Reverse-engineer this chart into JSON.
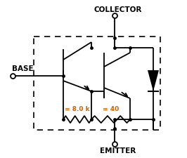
{
  "background": "#ffffff",
  "line_color": "#000000",
  "label_color": "#cc6600",
  "collector_label": "COLLECTOR",
  "base_label": "BASE",
  "emitter_label": "EMITTER",
  "r1_label": "= 8.0 k",
  "r2_label": "= 40",
  "figsize": [
    2.66,
    2.25
  ],
  "dpi": 100
}
